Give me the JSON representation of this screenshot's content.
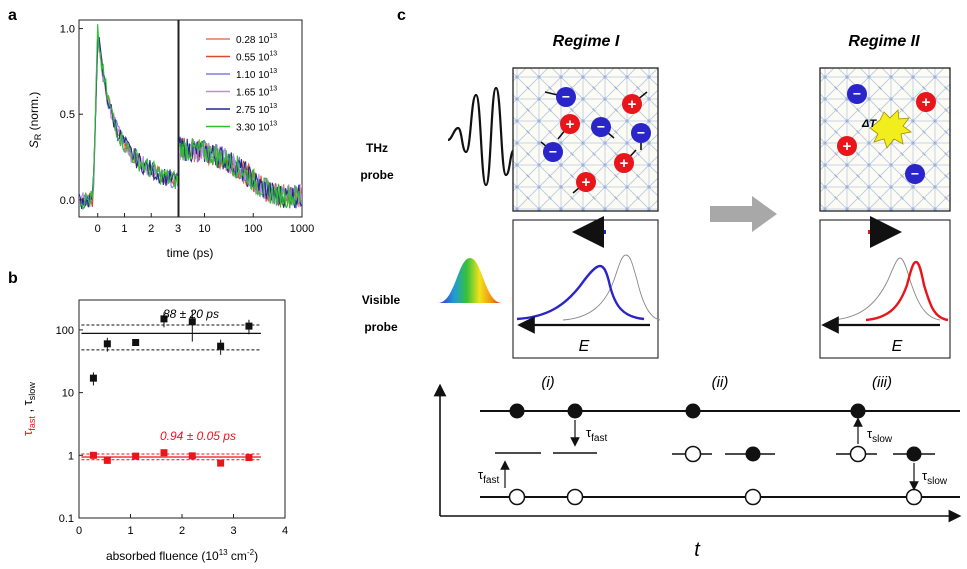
{
  "panel_labels": {
    "a": "a",
    "b": "b",
    "c": "c"
  },
  "colors": {
    "red_carrier": "#e8151b",
    "blue_carrier": "#2a25c8",
    "fast_fit": "#e8151b",
    "lattice": "#b8c8e4"
  },
  "chart_data": [
    {
      "type": "line",
      "panel": "a",
      "ylabel_main": "S",
      "ylabel_sub": "R",
      "ylabel_suffix": " (norm.)",
      "xlabel": "time (ps)",
      "ylim": [
        -0.1,
        1.05
      ],
      "y_ticks": [
        "0.0",
        "0.5",
        "1.0"
      ],
      "x_ticks_linear": [
        "0",
        "1",
        "2",
        "3"
      ],
      "x_ticks_log": [
        "10",
        "100",
        "1000"
      ],
      "xlim_linear": [
        -0.7,
        3
      ],
      "xlim_log": [
        3,
        1000
      ],
      "legend_position": "top-right",
      "series": [
        {
          "name": "0.28 10",
          "exp": "13",
          "color": "#e07a5f"
        },
        {
          "name": "0.55 10",
          "exp": "13",
          "color": "#d94a2a"
        },
        {
          "name": "1.10 10",
          "exp": "13",
          "color": "#7d7de8"
        },
        {
          "name": "1.65 10",
          "exp": "13",
          "color": "#b98ee0"
        },
        {
          "name": "2.75 10",
          "exp": "13",
          "color": "#1f2a8c"
        },
        {
          "name": "3.30 10",
          "exp": "13",
          "color": "#2fbf2f"
        }
      ]
    },
    {
      "type": "scatter",
      "panel": "b",
      "xlabel": "absorbed fluence (10",
      "xlabel_exp": "13",
      "xlabel_tail": " cm",
      "xlabel_exp2": "-2",
      "xlabel_close": ")",
      "ylabel_fast": "τ",
      "ylabel_fast_sub": "fast",
      "ylabel_sep": " , ",
      "ylabel_slow": "τ",
      "ylabel_slow_sub": "slow",
      "xlim": [
        0,
        4
      ],
      "ylim": [
        0.1,
        300
      ],
      "y_scale": "log",
      "x_ticks": [
        "0",
        "1",
        "2",
        "3",
        "4"
      ],
      "y_ticks": [
        "0.1",
        "1",
        "10",
        "100"
      ],
      "slow_annotation": "88 ± 20 ps",
      "fast_annotation": "0.94 ± 0.05 ps",
      "slow_fit": {
        "mean": 88,
        "low": 48,
        "high": 120
      },
      "fast_fit": {
        "mean": 0.94,
        "low": 0.85,
        "high": 1.05
      },
      "slow_points": [
        {
          "x": 0.28,
          "y": 17,
          "err": 4
        },
        {
          "x": 0.55,
          "y": 60,
          "err": 15
        },
        {
          "x": 1.1,
          "y": 63,
          "err": 6
        },
        {
          "x": 1.65,
          "y": 150,
          "err": 40
        },
        {
          "x": 2.2,
          "y": 135,
          "err": 70
        },
        {
          "x": 2.75,
          "y": 55,
          "err": 15
        },
        {
          "x": 3.3,
          "y": 115,
          "err": 30
        }
      ],
      "fast_points": [
        {
          "x": 0.28,
          "y": 1.0,
          "err": 0.12
        },
        {
          "x": 0.55,
          "y": 0.83,
          "err": 0.06
        },
        {
          "x": 1.1,
          "y": 0.97,
          "err": 0.05
        },
        {
          "x": 1.65,
          "y": 1.1,
          "err": 0.07
        },
        {
          "x": 2.2,
          "y": 0.98,
          "err": 0.1
        },
        {
          "x": 2.75,
          "y": 0.75,
          "err": 0.05
        },
        {
          "x": 3.3,
          "y": 0.92,
          "err": 0.05
        }
      ]
    }
  ],
  "schematic": {
    "regime1_title": "Regime I",
    "regime2_title": "Regime II",
    "thz_probe_line1": "THz",
    "thz_probe_line2": "probe",
    "visible_probe_line1": "Visible",
    "visible_probe_line2": "probe",
    "plus_sign": "+",
    "minus_sign": "−",
    "delta_t": "ΔT",
    "energy_label_1": "E",
    "energy_label_2": "E",
    "time_axis_label": "t",
    "stage_i": "(i)",
    "stage_ii": "(ii)",
    "stage_iii": "(iii)",
    "tau": "τ",
    "fast": "fast",
    "slow": "slow"
  }
}
